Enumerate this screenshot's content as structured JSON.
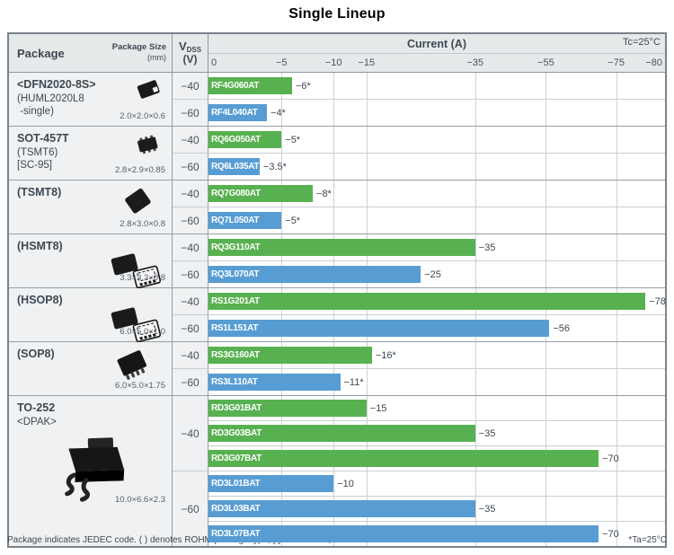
{
  "title": "Single Lineup",
  "header": {
    "package": "Package",
    "package_size": "Package Size",
    "package_size_unit": "(mm)",
    "vdss_main": "V",
    "vdss_sub": "DSS",
    "vdss_unit": "(V)",
    "current": "Current (A)",
    "tc": "Tc=25°C"
  },
  "colors": {
    "green": "#58b150",
    "blue": "#579dd3"
  },
  "axis": {
    "stops": [
      {
        "label": "0",
        "value": 0,
        "pct": 0
      },
      {
        "label": "−5",
        "value": 5,
        "pct": 16.0
      },
      {
        "label": "−10",
        "value": 10,
        "pct": 27.4
      },
      {
        "label": "−15",
        "value": 15,
        "pct": 34.6
      },
      {
        "label": "−35",
        "value": 35,
        "pct": 58.4
      },
      {
        "label": "−55",
        "value": 55,
        "pct": 73.9
      },
      {
        "label": "−75",
        "value": 75,
        "pct": 89.3
      },
      {
        "label": "−80",
        "value": 80,
        "pct": 100
      }
    ]
  },
  "groups": [
    {
      "id": "dfn2020-8s",
      "icon": "chip",
      "iconpos": "pos-tr",
      "lines": [
        "<DFN2020-8S>",
        "(HUML2020L8",
        " -single)"
      ],
      "size": "2.0×2.0×0.6",
      "sub": [
        {
          "vdss": "−40",
          "rows": [
            {
              "part": "RF4G060AT",
              "value": 6,
              "label": "−6*",
              "color": "green"
            }
          ]
        },
        {
          "vdss": "−60",
          "rows": [
            {
              "part": "RF4L040AT",
              "value": 4,
              "label": "−4*",
              "color": "blue"
            }
          ]
        }
      ]
    },
    {
      "id": "sot-457t",
      "icon": "sot",
      "iconpos": "pos-tr",
      "lines": [
        "SOT-457T",
        "(TSMT6)",
        "[SC-95]"
      ],
      "size": "2.8×2.9×0.85",
      "sub": [
        {
          "vdss": "−40",
          "rows": [
            {
              "part": "RQ6G050AT",
              "value": 5,
              "label": "−5*",
              "color": "green"
            }
          ]
        },
        {
          "vdss": "−60",
          "rows": [
            {
              "part": "RQ6L035AT",
              "value": 3.5,
              "label": "−3.5*",
              "color": "blue"
            }
          ]
        }
      ]
    },
    {
      "id": "tsmt8",
      "icon": "chip2",
      "iconpos": "pos-mid",
      "lines": [
        "(TSMT8)"
      ],
      "size": "2.8×3.0×0.8",
      "sub": [
        {
          "vdss": "−40",
          "rows": [
            {
              "part": "RQ7G080AT",
              "value": 8,
              "label": "−8*",
              "color": "green"
            }
          ]
        },
        {
          "vdss": "−60",
          "rows": [
            {
              "part": "RQ7L050AT",
              "value": 5,
              "label": "−5*",
              "color": "blue"
            }
          ]
        }
      ]
    },
    {
      "id": "hsmt8",
      "icon": "dualchip",
      "iconpos": "pos-wide",
      "lines": [
        "(HSMT8)"
      ],
      "size": "3.3×3.3×0.8",
      "sub": [
        {
          "vdss": "−40",
          "rows": [
            {
              "part": "RQ3G110AT",
              "value": 35,
              "label": "−35",
              "color": "green"
            }
          ]
        },
        {
          "vdss": "−60",
          "rows": [
            {
              "part": "RQ3L070AT",
              "value": 25,
              "label": "−25",
              "color": "blue"
            }
          ]
        }
      ]
    },
    {
      "id": "hsop8",
      "icon": "dualchip",
      "iconpos": "pos-wide",
      "lines": [
        "(HSOP8)"
      ],
      "size": "6.0×5.0×1.0",
      "sub": [
        {
          "vdss": "−40",
          "rows": [
            {
              "part": "RS1G201AT",
              "value": 78,
              "label": "−78",
              "color": "green"
            }
          ]
        },
        {
          "vdss": "−60",
          "rows": [
            {
              "part": "RS1L151AT",
              "value": 56,
              "label": "−56",
              "color": "blue"
            }
          ]
        }
      ]
    },
    {
      "id": "sop8",
      "icon": "sop",
      "iconpos": "pos-mid",
      "lines": [
        "(SOP8)"
      ],
      "size": "6.0×5.0×1.75",
      "sub": [
        {
          "vdss": "−40",
          "rows": [
            {
              "part": "RS3G160AT",
              "value": 16,
              "label": "−16*",
              "color": "green"
            }
          ]
        },
        {
          "vdss": "−60",
          "rows": [
            {
              "part": "RS3L110AT",
              "value": 11,
              "label": "−11*",
              "color": "blue"
            }
          ]
        }
      ]
    },
    {
      "id": "to-252",
      "icon": "to252",
      "iconpos": "pos-center",
      "tall": true,
      "lines": [
        "TO-252",
        "<DPAK>"
      ],
      "size": "10.0×6.6×2.3",
      "sub": [
        {
          "vdss": "−40",
          "rows": [
            {
              "part": "RD3G01BAT",
              "value": 15,
              "label": "−15",
              "color": "green"
            },
            {
              "part": "RD3G03BAT",
              "value": 35,
              "label": "−35",
              "color": "green"
            },
            {
              "part": "RD3G07BAT",
              "value": 70,
              "label": "−70",
              "color": "green"
            }
          ]
        },
        {
          "vdss": "−60",
          "rows": [
            {
              "part": "RD3L01BAT",
              "value": 10,
              "label": "−10",
              "color": "blue"
            },
            {
              "part": "RD3L03BAT",
              "value": 35,
              "label": "−35",
              "color": "blue"
            },
            {
              "part": "RD3L07BAT",
              "value": 70,
              "label": "−70",
              "color": "blue"
            }
          ]
        }
      ]
    }
  ],
  "footer": {
    "left": "Package indicates JEDEC code. ( ) denotes ROHM package type, [ ] JEITA code,< > General code.",
    "right": "*Ta=25°C"
  },
  "chart_data": {
    "type": "bar",
    "orientation": "horizontal",
    "title": "Single Lineup",
    "xlabel": "Current (A)",
    "x_ticks": [
      0,
      -5,
      -10,
      -15,
      -35,
      -55,
      -75,
      -80
    ],
    "x_scale": "nonlinear-piecewise",
    "xlim": [
      0,
      -80
    ],
    "grid": true,
    "condition_header": "Tc=25°C",
    "condition_asterisk": "*Ta=25°C",
    "series": [
      {
        "name": "VDSS −40V",
        "color": "#58b150"
      },
      {
        "name": "VDSS −60V",
        "color": "#579dd3"
      }
    ],
    "bars": [
      {
        "package": "<DFN2020-8S> (HUML2020L8 -single)",
        "package_size_mm": "2.0×2.0×0.6",
        "vdss_v": -40,
        "part": "RF4G060AT",
        "current_a": -6,
        "label": "−6*"
      },
      {
        "package": "<DFN2020-8S> (HUML2020L8 -single)",
        "package_size_mm": "2.0×2.0×0.6",
        "vdss_v": -60,
        "part": "RF4L040AT",
        "current_a": -4,
        "label": "−4*"
      },
      {
        "package": "SOT-457T (TSMT6) [SC-95]",
        "package_size_mm": "2.8×2.9×0.85",
        "vdss_v": -40,
        "part": "RQ6G050AT",
        "current_a": -5,
        "label": "−5*"
      },
      {
        "package": "SOT-457T (TSMT6) [SC-95]",
        "package_size_mm": "2.8×2.9×0.85",
        "vdss_v": -60,
        "part": "RQ6L035AT",
        "current_a": -3.5,
        "label": "−3.5*"
      },
      {
        "package": "(TSMT8)",
        "package_size_mm": "2.8×3.0×0.8",
        "vdss_v": -40,
        "part": "RQ7G080AT",
        "current_a": -8,
        "label": "−8*"
      },
      {
        "package": "(TSMT8)",
        "package_size_mm": "2.8×3.0×0.8",
        "vdss_v": -60,
        "part": "RQ7L050AT",
        "current_a": -5,
        "label": "−5*"
      },
      {
        "package": "(HSMT8)",
        "package_size_mm": "3.3×3.3×0.8",
        "vdss_v": -40,
        "part": "RQ3G110AT",
        "current_a": -35,
        "label": "−35"
      },
      {
        "package": "(HSMT8)",
        "package_size_mm": "3.3×3.3×0.8",
        "vdss_v": -60,
        "part": "RQ3L070AT",
        "current_a": -25,
        "label": "−25"
      },
      {
        "package": "(HSOP8)",
        "package_size_mm": "6.0×5.0×1.0",
        "vdss_v": -40,
        "part": "RS1G201AT",
        "current_a": -78,
        "label": "−78"
      },
      {
        "package": "(HSOP8)",
        "package_size_mm": "6.0×5.0×1.0",
        "vdss_v": -60,
        "part": "RS1L151AT",
        "current_a": -56,
        "label": "−56"
      },
      {
        "package": "(SOP8)",
        "package_size_mm": "6.0×5.0×1.75",
        "vdss_v": -40,
        "part": "RS3G160AT",
        "current_a": -16,
        "label": "−16*"
      },
      {
        "package": "(SOP8)",
        "package_size_mm": "6.0×5.0×1.75",
        "vdss_v": -60,
        "part": "RS3L110AT",
        "current_a": -11,
        "label": "−11*"
      },
      {
        "package": "TO-252 <DPAK>",
        "package_size_mm": "10.0×6.6×2.3",
        "vdss_v": -40,
        "part": "RD3G01BAT",
        "current_a": -15,
        "label": "−15"
      },
      {
        "package": "TO-252 <DPAK>",
        "package_size_mm": "10.0×6.6×2.3",
        "vdss_v": -40,
        "part": "RD3G03BAT",
        "current_a": -35,
        "label": "−35"
      },
      {
        "package": "TO-252 <DPAK>",
        "package_size_mm": "10.0×6.6×2.3",
        "vdss_v": -40,
        "part": "RD3G07BAT",
        "current_a": -70,
        "label": "−70"
      },
      {
        "package": "TO-252 <DPAK>",
        "package_size_mm": "10.0×6.6×2.3",
        "vdss_v": -60,
        "part": "RD3L01BAT",
        "current_a": -10,
        "label": "−10"
      },
      {
        "package": "TO-252 <DPAK>",
        "package_size_mm": "10.0×6.6×2.3",
        "vdss_v": -60,
        "part": "RD3L03BAT",
        "current_a": -35,
        "label": "−35"
      },
      {
        "package": "TO-252 <DPAK>",
        "package_size_mm": "10.0×6.6×2.3",
        "vdss_v": -60,
        "part": "RD3L07BAT",
        "current_a": -70,
        "label": "−70"
      }
    ]
  }
}
